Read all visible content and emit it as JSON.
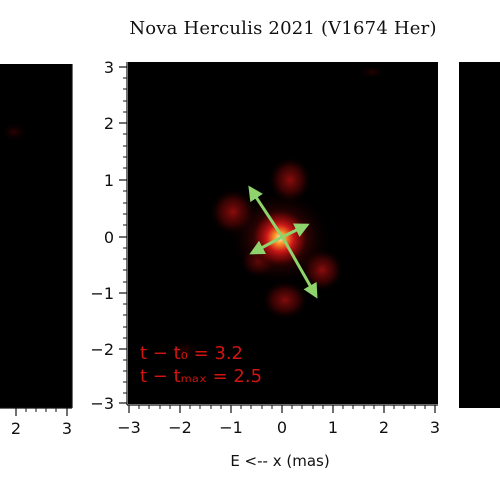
{
  "figure": {
    "title": "Nova Herculis 2021 (V1674 Her)",
    "center_panel": {
      "xlabel": "E <-- x (mas)",
      "x_ticks": [
        "−3",
        "−2",
        "−1",
        "0",
        "1",
        "2",
        "3"
      ],
      "y_ticks": [
        "3",
        "2",
        "1",
        "0",
        "−1",
        "−2",
        "−3"
      ],
      "annotation_line_1": "t − t₀ = 3.2",
      "annotation_line_2": "t − tₘₐₓ = 2.5"
    },
    "left_panel": {
      "x_ticks": [
        "2",
        "3"
      ]
    },
    "arrow_color": "#8fd36c",
    "text_color": "#d2140f"
  }
}
